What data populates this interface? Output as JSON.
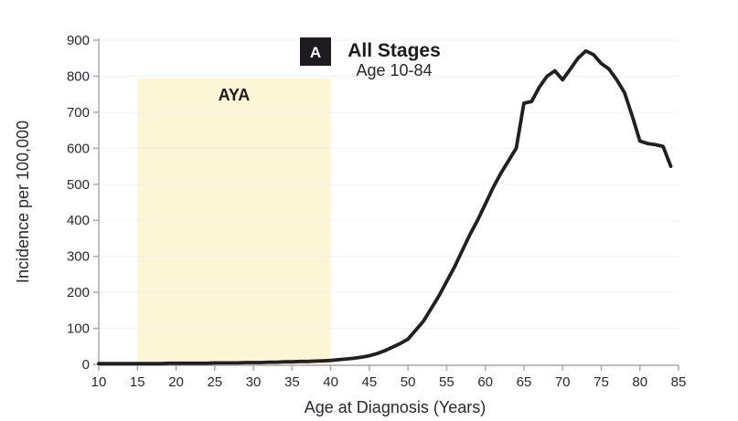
{
  "figure": {
    "panel_label": "A",
    "title": "All Stages",
    "subtitle": "Age 10-84",
    "xlabel": "Age at Diagnosis (Years)",
    "ylabel": "Incidence per 100,000"
  },
  "aya_band": {
    "label": "AYA",
    "age_start": 15,
    "age_end": 40,
    "top_value": 793,
    "fill": "#fcf5d6"
  },
  "colors": {
    "curve": "#221f22",
    "axis": "#a6a6a6",
    "tick_text": "#2a2733",
    "gridline": "#efefef",
    "panel_badge": "#1d1b20",
    "band_fill": "#fcf5d6",
    "background": "#ffffff"
  },
  "chart_data": {
    "type": "line",
    "title": "All Stages",
    "subtitle": "Age 10-84",
    "xlabel": "Age at Diagnosis (Years)",
    "ylabel": "Incidence per 100,000",
    "xlim": [
      10,
      85
    ],
    "ylim": [
      0,
      900
    ],
    "x_ticks": [
      10,
      15,
      20,
      25,
      30,
      35,
      40,
      45,
      50,
      55,
      60,
      65,
      70,
      75,
      80,
      85
    ],
    "y_ticks": [
      0,
      100,
      200,
      300,
      400,
      500,
      600,
      700,
      800,
      900
    ],
    "grid": "faint horizontal gridlines at each 100",
    "legend": "none",
    "series": [
      {
        "name": "All Stages, Age 10-84",
        "x": [
          10,
          11,
          12,
          13,
          14,
          15,
          16,
          17,
          18,
          19,
          20,
          21,
          22,
          23,
          24,
          25,
          26,
          27,
          28,
          29,
          30,
          31,
          32,
          33,
          34,
          35,
          36,
          37,
          38,
          39,
          40,
          41,
          42,
          43,
          44,
          45,
          46,
          47,
          48,
          49,
          50,
          51,
          52,
          53,
          54,
          55,
          56,
          57,
          58,
          59,
          60,
          61,
          62,
          63,
          64,
          65,
          66,
          67,
          68,
          69,
          70,
          71,
          72,
          73,
          74,
          75,
          76,
          77,
          78,
          79,
          80,
          81,
          82,
          83,
          84
        ],
        "y": [
          2,
          2,
          2,
          2,
          2,
          2,
          2,
          2,
          2,
          3,
          3,
          3,
          3,
          3,
          3,
          4,
          4,
          4,
          4,
          5,
          5,
          5,
          6,
          6,
          7,
          7,
          8,
          8,
          9,
          10,
          11,
          13,
          15,
          17,
          20,
          24,
          30,
          38,
          48,
          58,
          70,
          95,
          120,
          155,
          190,
          230,
          270,
          315,
          360,
          400,
          445,
          490,
          530,
          565,
          600,
          725,
          730,
          770,
          800,
          815,
          790,
          820,
          850,
          870,
          860,
          835,
          820,
          790,
          755,
          690,
          620,
          613,
          610,
          605,
          550
        ]
      }
    ],
    "annotations": [
      {
        "text": "AYA",
        "type": "shaded-band",
        "x_range": [
          15,
          40
        ],
        "y_range": [
          0,
          793
        ]
      }
    ]
  }
}
